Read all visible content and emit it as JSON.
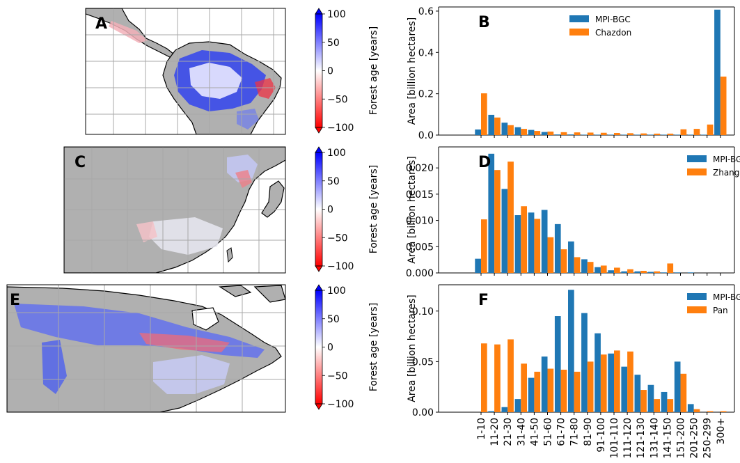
{
  "figure": {
    "colorbar_label": "Forest age [years]",
    "colorbar_ticks": [
      "100",
      "50",
      "0",
      "−50",
      "−100"
    ],
    "colors": {
      "series1": "#1f77b4",
      "series2": "#ff7f0e",
      "land": "#b0b0b0",
      "positive": "#0000ff",
      "negative": "#ff0000",
      "grid": "#a8a8a8"
    },
    "maps": [
      {
        "label": "A",
        "region": "Latin America"
      },
      {
        "label": "C",
        "region": "East Asia"
      },
      {
        "label": "E",
        "region": "North America"
      }
    ]
  },
  "chart_data": [
    {
      "panel": "B",
      "type": "bar",
      "ylabel": "Area [billion hectares]",
      "ylim": [
        0,
        0.62
      ],
      "yticks": [
        "0.0",
        "0.2",
        "0.4",
        "0.6"
      ],
      "ytick_values": [
        0,
        0.2,
        0.4,
        0.6
      ],
      "legend_position": "top-center",
      "categories": [
        "1-10",
        "11-20",
        "21-30",
        "31-40",
        "41-50",
        "51-60",
        "61-70",
        "71-80",
        "81-90",
        "91-100",
        "101-110",
        "111-120",
        "121-130",
        "131-140",
        "141-150",
        "151-200",
        "201-250",
        "250-299",
        "300+"
      ],
      "series": [
        {
          "name": "MPI-BGC",
          "values": [
            0.027,
            0.098,
            0.06,
            0.038,
            0.025,
            0.015,
            0.003,
            0.003,
            0.002,
            0.002,
            0.002,
            0.002,
            0.002,
            0.002,
            0.002,
            0.002,
            0.002,
            0.002,
            0.607
          ]
        },
        {
          "name": "Chazdon",
          "values": [
            0.202,
            0.085,
            0.048,
            0.03,
            0.02,
            0.017,
            0.014,
            0.013,
            0.012,
            0.011,
            0.01,
            0.009,
            0.008,
            0.007,
            0.007,
            0.028,
            0.03,
            0.051,
            0.283
          ]
        }
      ]
    },
    {
      "panel": "D",
      "type": "bar",
      "ylabel": "Area [billion hectares]",
      "ylim": [
        0,
        0.024
      ],
      "yticks": [
        "0.000",
        "0.005",
        "0.010",
        "0.015",
        "0.020"
      ],
      "ytick_values": [
        0,
        0.005,
        0.01,
        0.015,
        0.02
      ],
      "legend_position": "top-right",
      "categories": [
        "1-10",
        "11-20",
        "21-30",
        "31-40",
        "41-50",
        "51-60",
        "61-70",
        "71-80",
        "81-90",
        "91-100",
        "101-110",
        "111-120",
        "121-130",
        "131-140",
        "141-150",
        "151-200",
        "201-250",
        "250-299",
        "300+"
      ],
      "series": [
        {
          "name": "MPI-BGC",
          "values": [
            0.0027,
            0.0227,
            0.016,
            0.011,
            0.0115,
            0.012,
            0.0093,
            0.006,
            0.0026,
            0.0011,
            0.0005,
            0.0003,
            0.0003,
            0.0002,
            0.0001,
            0.0001,
            0.0001,
            0.0,
            0.0
          ]
        },
        {
          "name": "Zhang",
          "values": [
            0.0102,
            0.0196,
            0.0212,
            0.0127,
            0.0103,
            0.0068,
            0.0045,
            0.003,
            0.0021,
            0.0014,
            0.001,
            0.0007,
            0.0004,
            0.0003,
            0.0018,
            0.0,
            0.0,
            0.0,
            0.0
          ]
        }
      ]
    },
    {
      "panel": "F",
      "type": "bar",
      "ylabel": "Area [billion hectares]",
      "ylim": [
        0,
        0.126
      ],
      "yticks": [
        "0.00",
        "0.05",
        "0.10"
      ],
      "ytick_values": [
        0,
        0.05,
        0.1
      ],
      "legend_position": "top-right",
      "categories": [
        "1-10",
        "11-20",
        "21-30",
        "31-40",
        "41-50",
        "51-60",
        "61-70",
        "71-80",
        "81-90",
        "91-100",
        "101-110",
        "111-120",
        "121-130",
        "131-140",
        "141-150",
        "151-200",
        "201-250",
        "250-299",
        "300+"
      ],
      "series": [
        {
          "name": "MPI-BGC",
          "values": [
            0.0,
            0.001,
            0.005,
            0.013,
            0.034,
            0.055,
            0.095,
            0.121,
            0.098,
            0.078,
            0.058,
            0.045,
            0.037,
            0.027,
            0.02,
            0.05,
            0.008,
            0.0,
            0.0
          ]
        },
        {
          "name": "Pan",
          "values": [
            0.068,
            0.067,
            0.072,
            0.048,
            0.04,
            0.043,
            0.042,
            0.04,
            0.05,
            0.057,
            0.061,
            0.06,
            0.022,
            0.013,
            0.013,
            0.038,
            0.003,
            0.001,
            0.001
          ]
        }
      ]
    }
  ]
}
